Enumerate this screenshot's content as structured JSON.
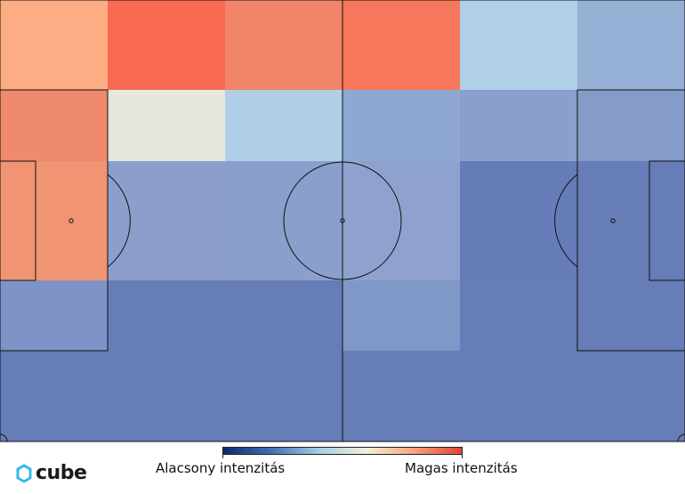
{
  "heatmap": {
    "rows": [
      [
        "#fcad84",
        "#f86a52",
        "#f18469",
        "#f6775b",
        "#b1cfe6",
        "#96b0d6"
      ],
      [
        "#ef8a6f",
        "#e4e8de",
        "#b0cfe6",
        "#8fa8d3",
        "#8a9fcb",
        "#859bc8"
      ],
      [
        "#f09474",
        "#8c9fcc",
        "#8a9fcc",
        "#8fa2cf",
        "#667cb8",
        "#677db8"
      ],
      [
        "#7f94c6",
        "#667db8",
        "#667db8",
        "#7f98c8",
        "#677db8",
        "#677db8"
      ],
      [
        "#677db8",
        "#677db8",
        "#677db8",
        "#677db8",
        "#677db8",
        "#677db8"
      ]
    ],
    "colorscale": [
      "#0e2a6e",
      "#3f6fb4",
      "#a6cde4",
      "#f1f1d8",
      "#f7a47c",
      "#e0453a"
    ]
  },
  "legend": {
    "low_label": "Alacsony intenzitás",
    "high_label": "Magas intenzitás"
  },
  "logo": {
    "text": "cube",
    "color": "#35b9e9"
  }
}
